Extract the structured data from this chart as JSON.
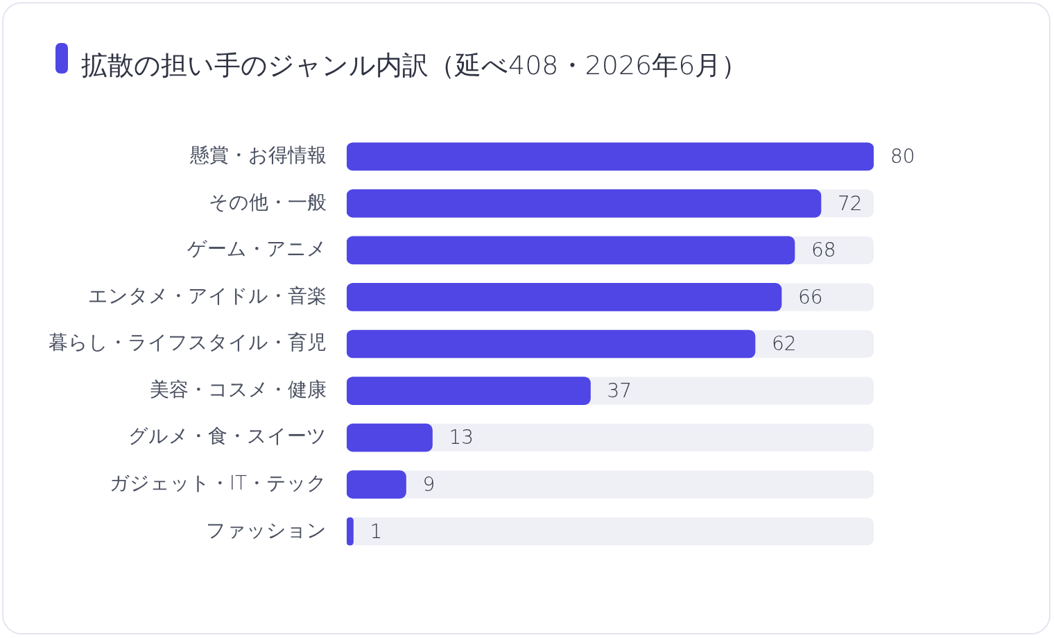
{
  "chart_data": {
    "type": "bar",
    "orientation": "horizontal",
    "title": "拡散の担い手のジャンル内訳（延べ408・2026年6月）",
    "categories": [
      "懸賞・お得情報",
      "その他・一般",
      "ゲーム・アニメ",
      "エンタメ・アイドル・音楽",
      "暮らし・ライフスタイル・育児",
      "美容・コスメ・健康",
      "グルメ・食・スイーツ",
      "ガジェット・IT・テック",
      "ファッション"
    ],
    "values": [
      80,
      72,
      68,
      66,
      62,
      37,
      13,
      9,
      1
    ],
    "color": "#4f46e5",
    "xlim": [
      0,
      80
    ],
    "tick_labels": "y",
    "data_labels": true
  }
}
